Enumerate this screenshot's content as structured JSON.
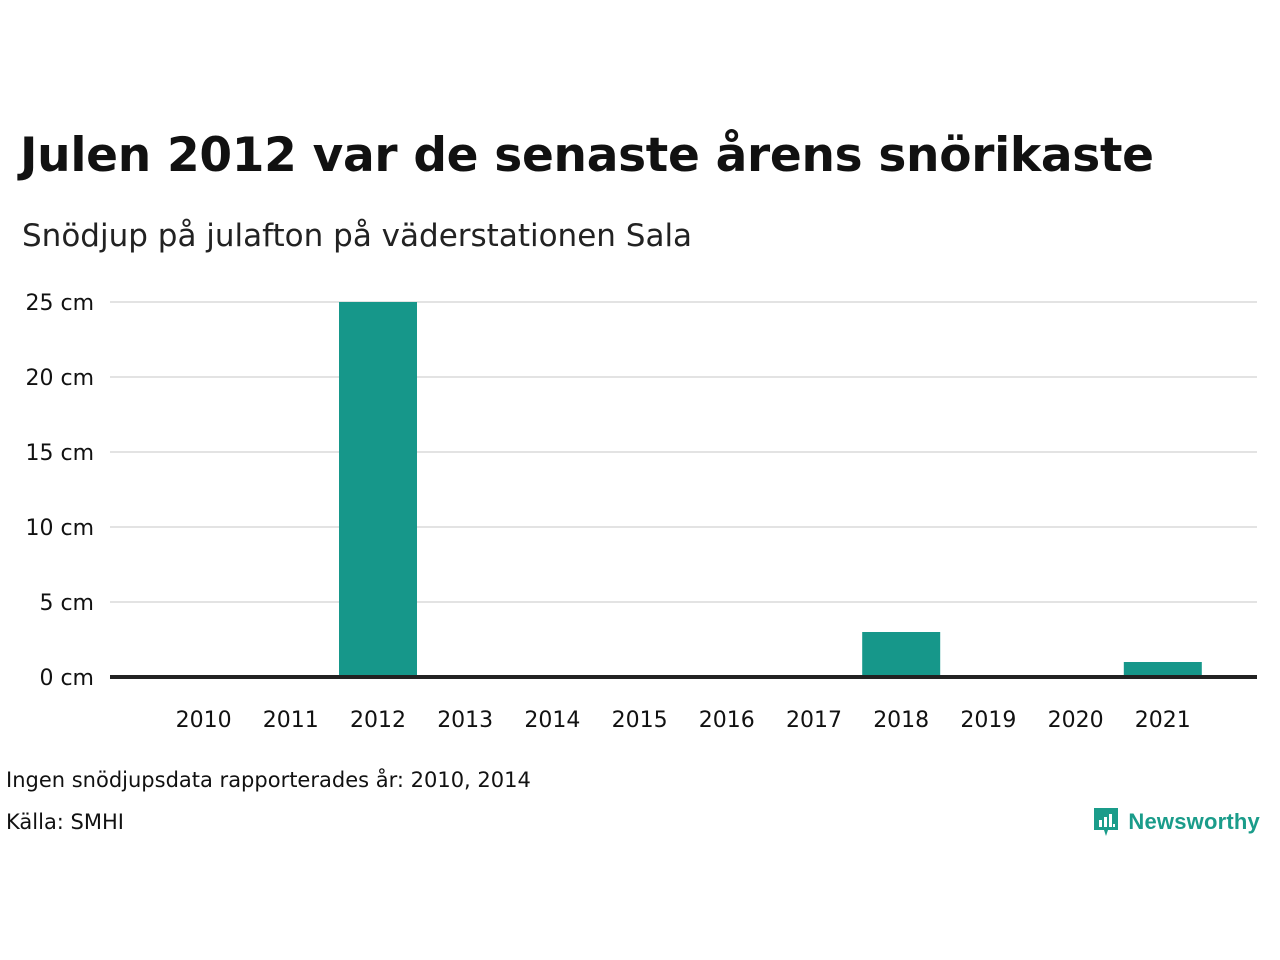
{
  "title": "Julen 2012 var de senaste årens snörikaste",
  "subtitle": "Snödjup på julafton på väderstationen Sala",
  "notes": {
    "missing": "Ingen snödjupsdata rapporterades år: 2010, 2014",
    "source": "Källa: SMHI"
  },
  "brand": {
    "name": "Newsworthy",
    "icon": "newsworthy-logo-icon",
    "color": "#1a9c8a"
  },
  "colors": {
    "bar": "#16978a",
    "grid": "#e3e3e3",
    "baseline": "#222222"
  },
  "chart_data": {
    "type": "bar",
    "categories": [
      "2010",
      "2011",
      "2012",
      "2013",
      "2014",
      "2015",
      "2016",
      "2017",
      "2018",
      "2019",
      "2020",
      "2021"
    ],
    "values": [
      null,
      0,
      25,
      0,
      null,
      0,
      0,
      0,
      3,
      0,
      0,
      1
    ],
    "yticks": [
      "0 cm",
      "5 cm",
      "10 cm",
      "15 cm",
      "20 cm",
      "25 cm"
    ],
    "ytick_values": [
      0,
      5,
      10,
      15,
      20,
      25
    ],
    "ylim": [
      0,
      25
    ],
    "unit": "cm",
    "xlabel": "",
    "ylabel": "",
    "grid": true
  }
}
